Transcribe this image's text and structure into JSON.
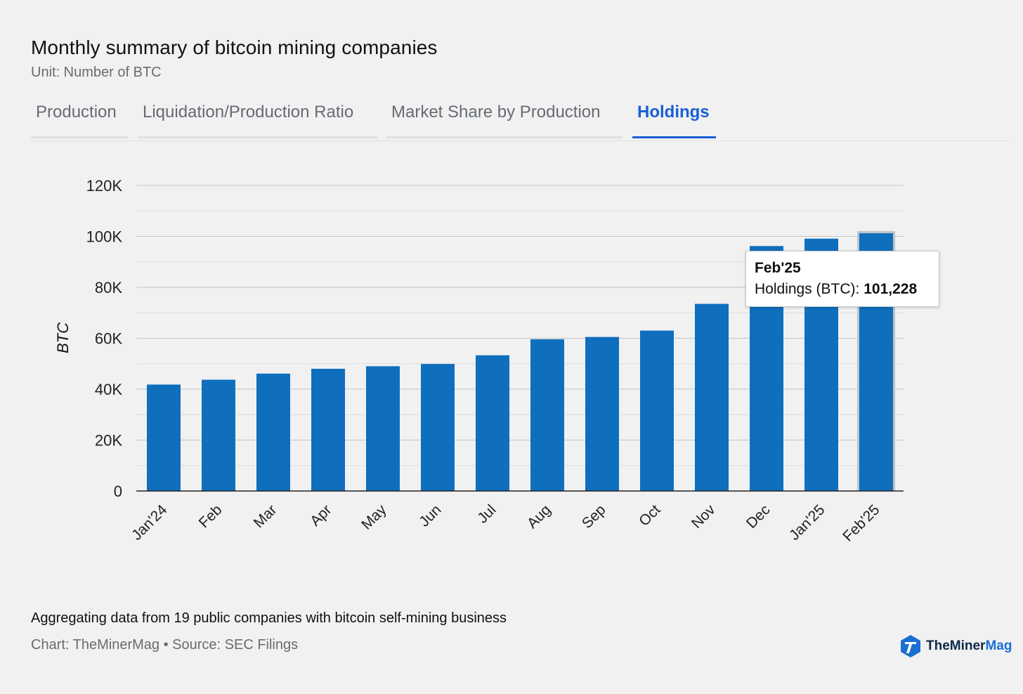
{
  "title": "Monthly summary of bitcoin mining companies",
  "subtitle": "Unit: Number of BTC",
  "tabs": [
    {
      "label": "Production",
      "active": false
    },
    {
      "label": "Liquidation/Production Ratio",
      "active": false
    },
    {
      "label": "Market Share by Production",
      "active": false
    },
    {
      "label": "Holdings",
      "active": true
    }
  ],
  "tooltip": {
    "title": "Feb'25",
    "series_label": "Holdings (BTC):",
    "value": "101,228"
  },
  "footer": {
    "note": "Aggregating data from 19 public companies with bitcoin self-mining business",
    "credit": "Chart: TheMinerMag • Source: SEC Filings"
  },
  "logo": {
    "text_main": "TheMiner",
    "text_accent": "Mag"
  },
  "colors": {
    "bar": "#0f6fbd",
    "active_tab": "#1a5ed6"
  },
  "chart_data": {
    "type": "bar",
    "categories": [
      "Jan'24",
      "Feb",
      "Mar",
      "Apr",
      "May",
      "Jun",
      "Jul",
      "Aug",
      "Sep",
      "Oct",
      "Nov",
      "Dec",
      "Jan'25",
      "Feb'25"
    ],
    "values": [
      41800,
      43700,
      46100,
      48000,
      49000,
      49900,
      53300,
      59600,
      60500,
      63000,
      73500,
      96200,
      99100,
      101228
    ],
    "ylabel": "BTC",
    "ylim": [
      0,
      120000
    ],
    "yticks": [
      0,
      20000,
      40000,
      60000,
      80000,
      100000,
      120000
    ],
    "ytick_labels": [
      "0",
      "20K",
      "40K",
      "60K",
      "80K",
      "100K",
      "120K"
    ],
    "highlighted_category": "Feb'25",
    "grid": true
  }
}
